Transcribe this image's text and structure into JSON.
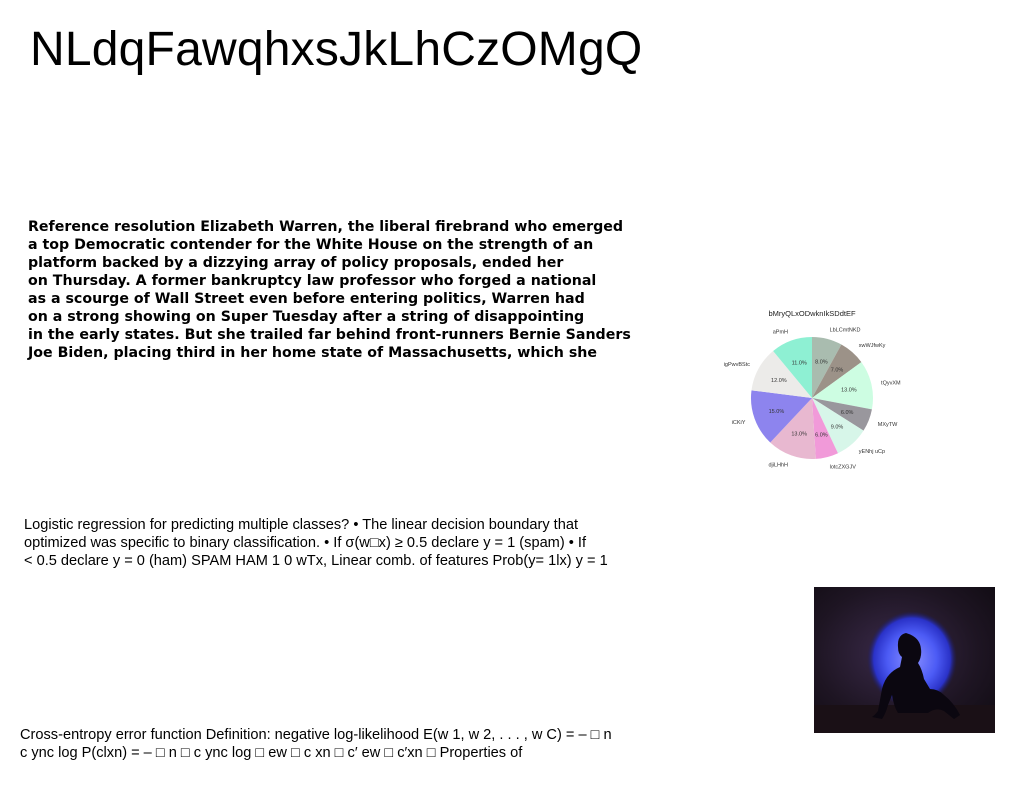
{
  "title": "NLdqFawqhxsJkLhCzOMgQ",
  "bold_paragraph": {
    "lines": [
      "Reference resolution Elizabeth Warren, the liberal firebrand who emerged",
      "a top Democratic contender for the White House on the strength of an",
      "platform backed by a dizzying array of policy proposals, ended her",
      "on Thursday. A former bankruptcy law professor who forged a national",
      "as a scourge of Wall Street even before entering politics, Warren had",
      "on a strong showing on Super Tuesday after a string of disappointing",
      "in the early states. But she trailed far behind front-runners Bernie Sanders",
      "Joe Biden, placing third in her home state of Massachusetts, which she"
    ]
  },
  "paragraph_logistic": {
    "lines": [
      "Logistic regression for predicting multiple classes? • The linear decision boundary that",
      "optimized was specific to binary classification. • If σ(w□x) ≥ 0.5 declare y = 1 (spam) • If",
      "< 0.5 declare y = 0 (ham) SPAM HAM 1 0 wTx, Linear comb. of features Prob(y= 1lx) y = 1"
    ]
  },
  "paragraph_crossentropy": {
    "lines": [
      "Cross-entropy error function Definition: negative log-likelihood E(w 1, w 2, . . . , w C) = – □ n",
      "c ync log P(clxn) = – □ n □ c ync log □ ew □ c xn □ c′ ew □ c′xn □ Properties of"
    ]
  },
  "chart_data": {
    "type": "pie",
    "title": "bMryQLxODwknIkSDdtEF",
    "slices": [
      {
        "label": "LbLCmtNKD",
        "value": 8.0,
        "color": "#a9bcaf"
      },
      {
        "label": "xwWJfwKy",
        "value": 7.0,
        "color": "#9c9288"
      },
      {
        "label": "tQyvXM",
        "value": 13.0,
        "color": "#cdfde2"
      },
      {
        "label": "MXyTW",
        "value": 6.0,
        "color": "#99979d"
      },
      {
        "label": "yENhj uCp",
        "value": 9.0,
        "color": "#d7f6e9"
      },
      {
        "label": "lotcZXGJV",
        "value": 6.0,
        "color": "#f19ad9"
      },
      {
        "label": "djiLHhH",
        "value": 13.0,
        "color": "#e8b8d0"
      },
      {
        "label": "iCKiY",
        "value": 15.0,
        "color": "#8d84ee"
      },
      {
        "label": "igPwvBStc",
        "value": 12.0,
        "color": "#ecebe9"
      },
      {
        "label": "aPmH",
        "value": 11.0,
        "color": "#8ef0d3"
      }
    ],
    "start_angle_deg": 90,
    "direction": "clockwise",
    "legend": "none"
  },
  "photo": {
    "subject": "silhouette-seated-person-blue-light"
  }
}
